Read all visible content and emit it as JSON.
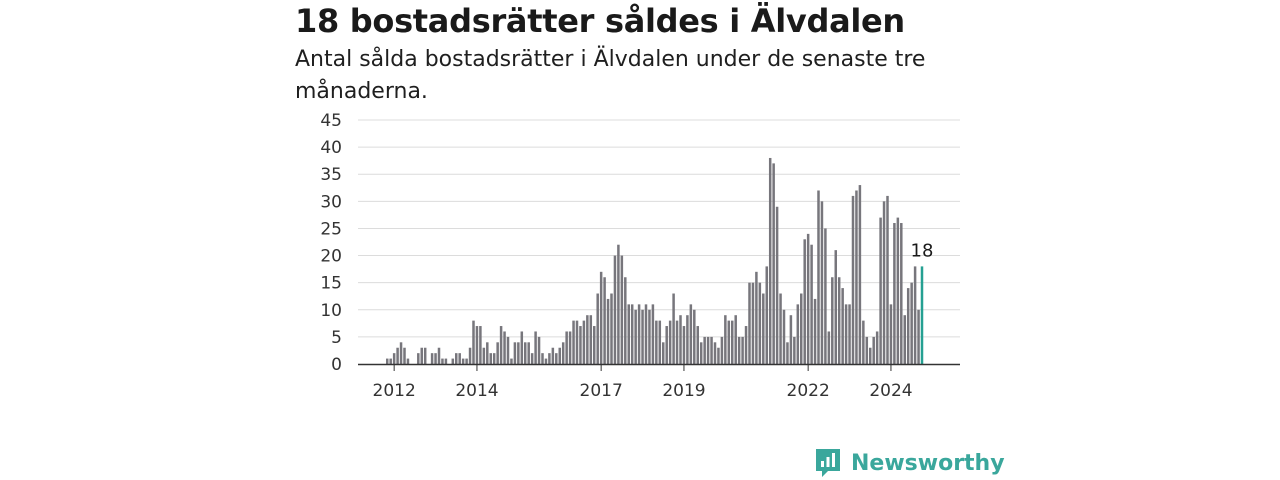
{
  "title": "18 bostadsrätter såldes i Älvdalen",
  "subtitle": "Antal sålda bostadsrätter i Älvdalen under de senaste tre månaderna.",
  "brand": {
    "name": "Newsworthy",
    "color": "#3aa79c",
    "icon": "newsworthy-logo-icon"
  },
  "chart_data": {
    "type": "bar",
    "title": "",
    "xlabel": "",
    "ylabel": "",
    "ylim": [
      0,
      45
    ],
    "yticks": [
      "0",
      "5",
      "10",
      "15",
      "20",
      "25",
      "30",
      "35",
      "40",
      "45"
    ],
    "xticks": [
      {
        "label": "2012",
        "index": 2
      },
      {
        "label": "2014",
        "index": 26
      },
      {
        "label": "2017",
        "index": 62
      },
      {
        "label": "2019",
        "index": 86
      },
      {
        "label": "2022",
        "index": 122
      },
      {
        "label": "2024",
        "index": 146
      }
    ],
    "grid": true,
    "bar_color": "#77767c",
    "highlight_color": "#25a092",
    "highlight_label": "18",
    "values": [
      1,
      1,
      2,
      3,
      4,
      3,
      1,
      0,
      0,
      2,
      3,
      3,
      0,
      2,
      2,
      3,
      1,
      1,
      0,
      1,
      2,
      2,
      1,
      1,
      3,
      8,
      7,
      7,
      3,
      4,
      2,
      2,
      4,
      7,
      6,
      5,
      1,
      4,
      4,
      6,
      4,
      4,
      2,
      6,
      5,
      2,
      1,
      2,
      3,
      2,
      3,
      4,
      6,
      6,
      8,
      8,
      7,
      8,
      9,
      9,
      7,
      13,
      17,
      16,
      12,
      13,
      20,
      22,
      20,
      16,
      11,
      11,
      10,
      11,
      10,
      11,
      10,
      11,
      8,
      8,
      4,
      7,
      8,
      13,
      8,
      9,
      7,
      9,
      11,
      10,
      7,
      4,
      5,
      5,
      5,
      4,
      3,
      5,
      9,
      8,
      8,
      9,
      5,
      5,
      7,
      15,
      15,
      17,
      15,
      13,
      18,
      38,
      37,
      29,
      13,
      10,
      4,
      9,
      5,
      11,
      13,
      23,
      24,
      22,
      12,
      32,
      30,
      25,
      6,
      16,
      21,
      16,
      14,
      11,
      11,
      31,
      32,
      33,
      8,
      5,
      3,
      5,
      6,
      27,
      30,
      31,
      11,
      26,
      27,
      26,
      9,
      14,
      15,
      18,
      10,
      18
    ]
  }
}
